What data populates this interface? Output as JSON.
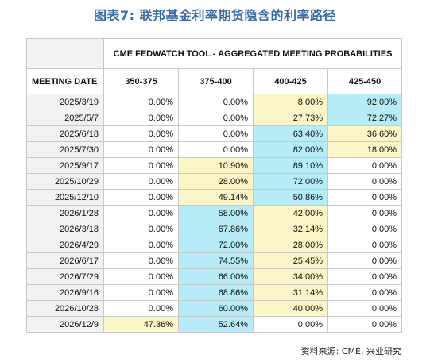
{
  "figure_title": "图表7:  联邦基金利率期货隐含的利率路径",
  "source_note": "资料来源: CME, 兴业研究",
  "colors": {
    "high_probability": "#b6ecf7",
    "second_probability": "#fbf5c8",
    "title_color": "#3b6ea8"
  },
  "chart_data": {
    "type": "table",
    "title": "CME FEDWATCH TOOL - AGGREGATED MEETING PROBABILITIES",
    "row_header_label": "MEETING DATE",
    "columns": [
      "350-375",
      "375-400",
      "400-425",
      "425-450"
    ],
    "rows": [
      {
        "date": "2025/3/19",
        "values": [
          "0.00%",
          "0.00%",
          "8.00%",
          "92.00%"
        ],
        "shade": [
          "",
          "",
          "yellow",
          "blue"
        ]
      },
      {
        "date": "2025/5/7",
        "values": [
          "0.00%",
          "0.00%",
          "27.73%",
          "72.27%"
        ],
        "shade": [
          "",
          "",
          "yellow",
          "blue"
        ]
      },
      {
        "date": "2025/6/18",
        "values": [
          "0.00%",
          "0.00%",
          "63.40%",
          "36.60%"
        ],
        "shade": [
          "",
          "",
          "blue",
          "yellow"
        ]
      },
      {
        "date": "2025/7/30",
        "values": [
          "0.00%",
          "0.00%",
          "82.00%",
          "18.00%"
        ],
        "shade": [
          "",
          "",
          "blue",
          "yellow"
        ]
      },
      {
        "date": "2025/9/17",
        "values": [
          "0.00%",
          "10.90%",
          "89.10%",
          "0.00%"
        ],
        "shade": [
          "",
          "yellow",
          "blue",
          ""
        ]
      },
      {
        "date": "2025/10/29",
        "values": [
          "0.00%",
          "28.00%",
          "72.00%",
          "0.00%"
        ],
        "shade": [
          "",
          "yellow",
          "blue",
          ""
        ]
      },
      {
        "date": "2025/12/10",
        "values": [
          "0.00%",
          "49.14%",
          "50.86%",
          "0.00%"
        ],
        "shade": [
          "",
          "yellow",
          "blue",
          ""
        ]
      },
      {
        "date": "2026/1/28",
        "values": [
          "0.00%",
          "58.00%",
          "42.00%",
          "0.00%"
        ],
        "shade": [
          "",
          "blue",
          "yellow",
          ""
        ]
      },
      {
        "date": "2026/3/18",
        "values": [
          "0.00%",
          "67.86%",
          "32.14%",
          "0.00%"
        ],
        "shade": [
          "",
          "blue",
          "yellow",
          ""
        ]
      },
      {
        "date": "2026/4/29",
        "values": [
          "0.00%",
          "72.00%",
          "28.00%",
          "0.00%"
        ],
        "shade": [
          "",
          "blue",
          "yellow",
          ""
        ]
      },
      {
        "date": "2026/6/17",
        "values": [
          "0.00%",
          "74.55%",
          "25.45%",
          "0.00%"
        ],
        "shade": [
          "",
          "blue",
          "yellow",
          ""
        ]
      },
      {
        "date": "2026/7/29",
        "values": [
          "0.00%",
          "66.00%",
          "34.00%",
          "0.00%"
        ],
        "shade": [
          "",
          "blue",
          "yellow",
          ""
        ]
      },
      {
        "date": "2026/9/16",
        "values": [
          "0.00%",
          "68.86%",
          "31.14%",
          "0.00%"
        ],
        "shade": [
          "",
          "blue",
          "yellow",
          ""
        ]
      },
      {
        "date": "2026/10/28",
        "values": [
          "0.00%",
          "60.00%",
          "40.00%",
          "0.00%"
        ],
        "shade": [
          "",
          "blue",
          "yellow",
          ""
        ]
      },
      {
        "date": "2026/12/9",
        "values": [
          "47.36%",
          "52.64%",
          "0.00%",
          "0.00%"
        ],
        "shade": [
          "yellow",
          "blue",
          "",
          ""
        ]
      }
    ]
  }
}
